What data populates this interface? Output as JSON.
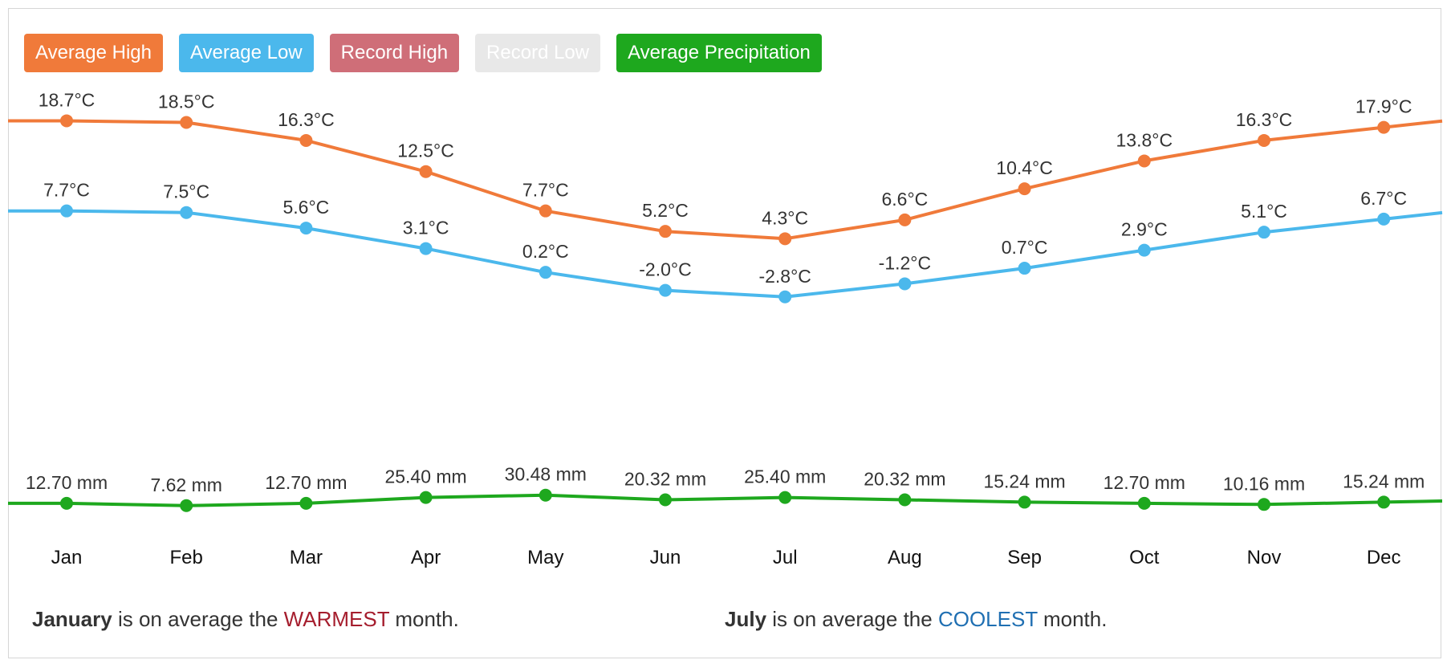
{
  "legend": [
    {
      "label": "Average High",
      "color": "#f07a3a"
    },
    {
      "label": "Average Low",
      "color": "#4bb8ec"
    },
    {
      "label": "Record High",
      "color": "#cf6e78"
    },
    {
      "label": "Record Low",
      "color": "#e8e8e8"
    },
    {
      "label": "Average Precipitation",
      "color": "#1ea81e"
    }
  ],
  "chart_data": {
    "type": "line",
    "categories": [
      "Jan",
      "Feb",
      "Mar",
      "Apr",
      "May",
      "Jun",
      "Jul",
      "Aug",
      "Sep",
      "Oct",
      "Nov",
      "Dec"
    ],
    "series": [
      {
        "name": "Average High",
        "unit": "°C",
        "color": "#f07a3a",
        "values": [
          18.7,
          18.5,
          16.3,
          12.5,
          7.7,
          5.2,
          4.3,
          6.6,
          10.4,
          13.8,
          16.3,
          17.9
        ],
        "labels": [
          "18.7°C",
          "18.5°C",
          "16.3°C",
          "12.5°C",
          "7.7°C",
          "5.2°C",
          "4.3°C",
          "6.6°C",
          "10.4°C",
          "13.8°C",
          "16.3°C",
          "17.9°C"
        ]
      },
      {
        "name": "Average Low",
        "unit": "°C",
        "color": "#4bb8ec",
        "values": [
          7.7,
          7.5,
          5.6,
          3.1,
          0.2,
          -2.0,
          -2.8,
          -1.2,
          0.7,
          2.9,
          5.1,
          6.7
        ],
        "labels": [
          "7.7°C",
          "7.5°C",
          "5.6°C",
          "3.1°C",
          "0.2°C",
          "-2.0°C",
          "-2.8°C",
          "-1.2°C",
          "0.7°C",
          "2.9°C",
          "5.1°C",
          "6.7°C"
        ]
      },
      {
        "name": "Average Precipitation",
        "unit": "mm",
        "color": "#1ea81e",
        "values": [
          12.7,
          7.62,
          12.7,
          25.4,
          30.48,
          20.32,
          25.4,
          20.32,
          15.24,
          12.7,
          10.16,
          15.24
        ],
        "labels": [
          "12.70 mm",
          "7.62 mm",
          "12.70 mm",
          "25.40 mm",
          "30.48 mm",
          "20.32 mm",
          "25.40 mm",
          "20.32 mm",
          "15.24 mm",
          "12.70 mm",
          "10.16 mm",
          "15.24 mm"
        ]
      }
    ],
    "hidden_series": [
      "Record High",
      "Record Low"
    ],
    "title": "",
    "xlabel": "",
    "ylabel": "",
    "grid": false
  },
  "footer": {
    "warm_month": "January",
    "warm_prefix": " is on average the ",
    "warm_word": "WARMEST",
    "warm_suffix": " month.",
    "cool_month": "July",
    "cool_prefix": " is on average the ",
    "cool_word": "COOLEST",
    "cool_suffix": " month."
  }
}
